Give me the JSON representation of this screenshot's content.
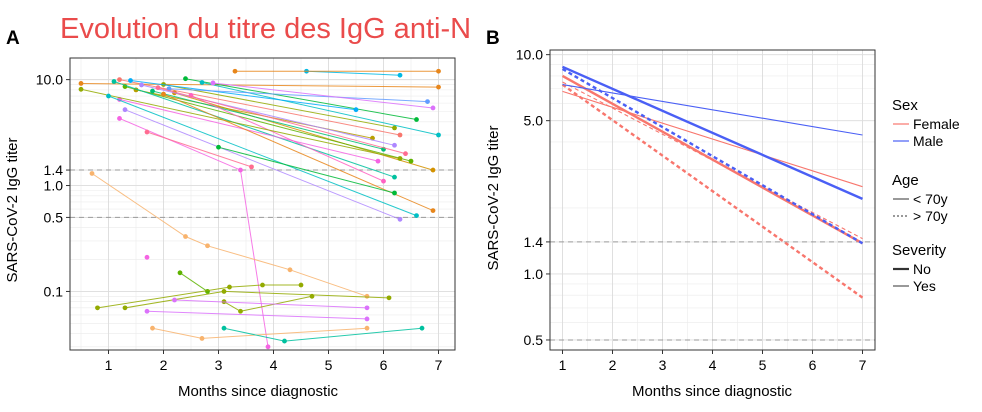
{
  "figure_title": "Evolution du titre des IgG anti-N",
  "chart_data": [
    {
      "panel": "A",
      "type": "line",
      "title": "",
      "xlabel": "Months since diagnostic",
      "ylabel": "SARS-CoV-2 IgG titer",
      "y_scale": "log",
      "xlim": [
        0.3,
        7.3
      ],
      "ylim": [
        0.028,
        16
      ],
      "x_ticks": [
        1,
        2,
        3,
        4,
        5,
        6,
        7
      ],
      "y_ticks": [
        0.1,
        0.5,
        1.0,
        1.4,
        10.0
      ],
      "y_tick_labels": [
        "0.1",
        "0.5",
        "1.0",
        "1.4",
        "10.0"
      ],
      "reference_lines": [
        1.4,
        0.5
      ],
      "grid": true,
      "legend": "none",
      "series": [
        {
          "color": "#f8766d",
          "x": [
            1.2,
            6.3
          ],
          "y": [
            10.0,
            3.0
          ]
        },
        {
          "color": "#e7861b",
          "x": [
            0.5,
            7.0
          ],
          "y": [
            9.2,
            8.5
          ]
        },
        {
          "color": "#d39200",
          "x": [
            2.2,
            6.9
          ],
          "y": [
            7.5,
            1.4
          ]
        },
        {
          "color": "#b79f00",
          "x": [
            1.5,
            5.8
          ],
          "y": [
            8.0,
            2.8
          ]
        },
        {
          "color": "#93aa00",
          "x": [
            2.0,
            6.2
          ],
          "y": [
            9.0,
            3.5
          ]
        },
        {
          "color": "#5eb300",
          "x": [
            1.3,
            6.5
          ],
          "y": [
            8.6,
            1.7
          ]
        },
        {
          "color": "#00ba38",
          "x": [
            2.4,
            6.6
          ],
          "y": [
            10.2,
            4.2
          ]
        },
        {
          "color": "#00bf74",
          "x": [
            1.8,
            6.0
          ],
          "y": [
            7.8,
            2.2
          ]
        },
        {
          "color": "#00c19f",
          "x": [
            1.1,
            6.2
          ],
          "y": [
            9.6,
            1.2
          ]
        },
        {
          "color": "#00bfc4",
          "x": [
            2.7,
            7.0
          ],
          "y": [
            9.4,
            3.0
          ]
        },
        {
          "color": "#00b9e3",
          "x": [
            4.6,
            6.3
          ],
          "y": [
            12.0,
            11.0
          ]
        },
        {
          "color": "#00adfa",
          "x": [
            1.4,
            5.5
          ],
          "y": [
            9.8,
            5.2
          ]
        },
        {
          "color": "#619cff",
          "x": [
            2.1,
            6.8
          ],
          "y": [
            8.2,
            6.2
          ]
        },
        {
          "color": "#ae87ff",
          "x": [
            1.6,
            6.2
          ],
          "y": [
            8.9,
            2.4
          ]
        },
        {
          "color": "#db72fb",
          "x": [
            2.9,
            6.9
          ],
          "y": [
            9.3,
            5.4
          ]
        },
        {
          "color": "#f564e3",
          "x": [
            1.2,
            5.9
          ],
          "y": [
            6.5,
            1.7
          ]
        },
        {
          "color": "#ff61c3",
          "x": [
            2.5,
            6.0
          ],
          "y": [
            7.1,
            1.1
          ]
        },
        {
          "color": "#ff6c91",
          "x": [
            1.9,
            6.4
          ],
          "y": [
            8.4,
            2.0
          ]
        },
        {
          "color": "#e7861b",
          "x": [
            3.3,
            7.0
          ],
          "y": [
            12.0,
            12.0
          ]
        },
        {
          "color": "#93aa00",
          "x": [
            0.5,
            6.3
          ],
          "y": [
            8.1,
            1.8
          ]
        },
        {
          "color": "#00bfc4",
          "x": [
            1.0,
            6.6
          ],
          "y": [
            7.0,
            0.52
          ]
        },
        {
          "color": "#e7861b",
          "x": [
            2.0,
            6.9
          ],
          "y": [
            7.3,
            0.58
          ]
        },
        {
          "color": "#ae87ff",
          "x": [
            1.3,
            6.3
          ],
          "y": [
            5.2,
            0.48
          ]
        },
        {
          "color": "#f564e3",
          "x": [
            1.2,
            3.4,
            3.9
          ],
          "y": [
            4.3,
            1.4,
            0.03
          ]
        },
        {
          "color": "#ff6c91",
          "x": [
            1.7,
            3.6
          ],
          "y": [
            3.2,
            1.5
          ]
        },
        {
          "color": "#00ba38",
          "x": [
            3.0,
            6.2
          ],
          "y": [
            2.3,
            0.85
          ]
        },
        {
          "color": "#f8b36d",
          "x": [
            0.7,
            2.4,
            2.8,
            4.3,
            5.7
          ],
          "y": [
            1.3,
            0.33,
            0.27,
            0.16,
            0.09
          ]
        },
        {
          "color": "#f564e3",
          "x": [
            1.7
          ],
          "y": [
            0.21
          ]
        },
        {
          "color": "#5eb300",
          "x": [
            2.3,
            2.8
          ],
          "y": [
            0.15,
            0.1
          ]
        },
        {
          "color": "#93aa00",
          "x": [
            0.8,
            3.2,
            3.8,
            4.5
          ],
          "y": [
            0.07,
            0.11,
            0.115,
            0.115
          ]
        },
        {
          "color": "#93aa00",
          "x": [
            1.3,
            3.1,
            6.1
          ],
          "y": [
            0.07,
            0.1,
            0.087
          ]
        },
        {
          "color": "#93aa00",
          "x": [
            3.1,
            3.4,
            4.7
          ],
          "y": [
            0.08,
            0.065,
            0.09
          ]
        },
        {
          "color": "#db72fb",
          "x": [
            1.7,
            5.7
          ],
          "y": [
            0.065,
            0.055
          ]
        },
        {
          "color": "#db72fb",
          "x": [
            2.2,
            5.7
          ],
          "y": [
            0.083,
            0.07
          ]
        },
        {
          "color": "#f8b36d",
          "x": [
            1.8,
            2.7,
            5.7
          ],
          "y": [
            0.045,
            0.036,
            0.045
          ]
        },
        {
          "color": "#00c19f",
          "x": [
            3.1,
            4.2,
            6.7
          ],
          "y": [
            0.045,
            0.034,
            0.045
          ]
        }
      ]
    },
    {
      "panel": "B",
      "type": "line",
      "title": "",
      "xlabel": "Months since diagnostic",
      "ylabel": "SARS-CoV-2 IgG titer",
      "y_scale": "log",
      "xlim": [
        0.75,
        7.25
      ],
      "ylim": [
        0.45,
        10.5
      ],
      "x_ticks": [
        1,
        2,
        3,
        4,
        5,
        6,
        7
      ],
      "y_ticks": [
        0.5,
        1.0,
        1.4,
        5.0,
        10.0
      ],
      "y_tick_labels": [
        "0.5",
        "1.0",
        "1.4",
        "5.0",
        "10.0"
      ],
      "reference_lines": [
        1.4,
        0.5
      ],
      "grid": true,
      "legend": "right",
      "series": [
        {
          "sex": "Female",
          "age": "< 70y",
          "severity": "No",
          "color": "#f8766d",
          "dash": "solid",
          "width": 2.4,
          "x": [
            1,
            7
          ],
          "y": [
            8.0,
            1.38
          ]
        },
        {
          "sex": "Female",
          "age": "> 70y",
          "severity": "No",
          "color": "#f8766d",
          "dash": "dashed",
          "width": 2.4,
          "x": [
            1,
            7
          ],
          "y": [
            7.3,
            0.78
          ]
        },
        {
          "sex": "Female",
          "age": "< 70y",
          "severity": "Yes",
          "color": "#f8766d",
          "dash": "solid",
          "width": 1.1,
          "x": [
            1,
            7
          ],
          "y": [
            6.8,
            2.5
          ]
        },
        {
          "sex": "Female",
          "age": "> 70y",
          "severity": "Yes",
          "color": "#f8766d",
          "dash": "dashed",
          "width": 1.1,
          "x": [
            1,
            7
          ],
          "y": [
            7.5,
            1.45
          ]
        },
        {
          "sex": "Male",
          "age": "< 70y",
          "severity": "No",
          "color": "#4a5ff5",
          "dash": "solid",
          "width": 2.4,
          "x": [
            1,
            7
          ],
          "y": [
            8.8,
            2.2
          ]
        },
        {
          "sex": "Male",
          "age": "> 70y",
          "severity": "No",
          "color": "#4a5ff5",
          "dash": "dashed",
          "width": 2.4,
          "x": [
            1,
            7
          ],
          "y": [
            8.6,
            1.38
          ]
        },
        {
          "sex": "Male",
          "age": "< 70y",
          "severity": "Yes",
          "color": "#4a5ff5",
          "dash": "solid",
          "width": 1.1,
          "x": [
            1,
            7
          ],
          "y": [
            7.3,
            4.3
          ]
        }
      ],
      "legend_groups": [
        {
          "title": "Sex",
          "items": [
            {
              "label": "Female",
              "color": "#f8766d",
              "dash": "solid",
              "width": 1.2
            },
            {
              "label": "Male",
              "color": "#4a5ff5",
              "dash": "solid",
              "width": 1.2
            }
          ]
        },
        {
          "title": "Age",
          "items": [
            {
              "label": "< 70y",
              "color": "#333333",
              "dash": "solid",
              "width": 1.0
            },
            {
              "label": "> 70y",
              "color": "#333333",
              "dash": "dashed",
              "width": 1.0
            }
          ]
        },
        {
          "title": "Severity",
          "items": [
            {
              "label": "No",
              "color": "#333333",
              "dash": "solid",
              "width": 2.2
            },
            {
              "label": "Yes",
              "color": "#333333",
              "dash": "solid",
              "width": 1.0
            }
          ]
        }
      ]
    }
  ]
}
